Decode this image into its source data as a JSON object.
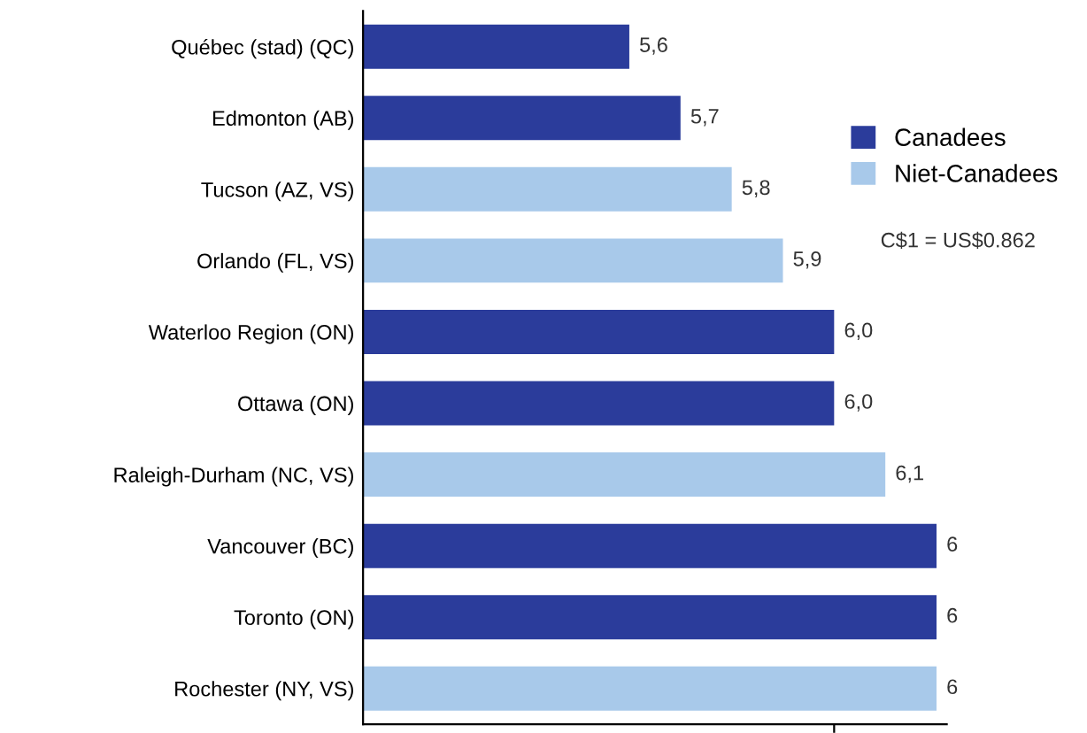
{
  "chart_data": {
    "type": "bar",
    "orientation": "horizontal",
    "categories": [
      "Québec (stad) (QC)",
      "Edmonton (AB)",
      "Tucson (AZ, VS)",
      "Orlando (FL, VS)",
      "Waterloo Region (ON)",
      "Ottawa (ON)",
      "Raleigh-Durham (NC, VS)",
      "Vancouver (BC)",
      "Toronto (ON)",
      "Rochester (NY, VS)"
    ],
    "series": [
      {
        "name": "Canadees",
        "color": "#2b3c9b",
        "values": [
          5.6,
          5.7,
          null,
          null,
          6.0,
          6.0,
          null,
          6.2,
          6.2,
          null
        ],
        "value_labels": [
          "5,6",
          "5,7",
          null,
          null,
          "6,0",
          "6,0",
          null,
          "6",
          "6",
          null
        ]
      },
      {
        "name": "Niet-Canadees",
        "color": "#a8c9ea",
        "values": [
          null,
          null,
          5.8,
          5.9,
          null,
          null,
          6.1,
          null,
          null,
          6.2
        ],
        "value_labels": [
          null,
          null,
          "5,8",
          "5,9",
          null,
          null,
          "6,1",
          null,
          null,
          "6"
        ]
      }
    ],
    "xlim": [
      5.08,
      6.22
    ],
    "xticks": [
      {
        "value": 6.0,
        "label": null
      }
    ],
    "tick_labels": "y",
    "grid": false,
    "legend": "right",
    "annotations": [
      "C$1 = US$0.862"
    ]
  }
}
